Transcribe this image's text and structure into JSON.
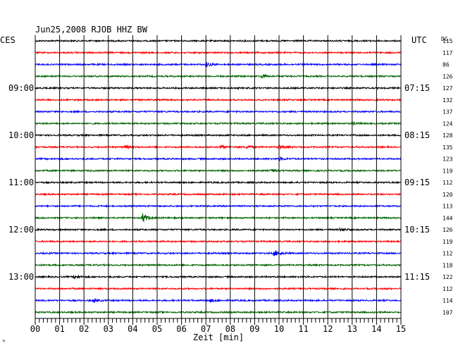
{
  "chart_data": {
    "type": "line",
    "title": "Jun25,2008   RJOB HHZ BW",
    "left_tz_label": "CES",
    "right_tz_label": "UTC",
    "dc_label": "DC",
    "xlabel": "Zeit [min]",
    "xlim": [
      0,
      15
    ],
    "x_ticks": [
      "00",
      "01",
      "02",
      "03",
      "04",
      "05",
      "06",
      "07",
      "08",
      "09",
      "10",
      "11",
      "12",
      "13",
      "14",
      "15"
    ],
    "left_time_labels": [
      "09:00",
      "10:00",
      "11:00",
      "12:00",
      "13:00"
    ],
    "left_time_label_rows": [
      4,
      8,
      12,
      16,
      20
    ],
    "right_time_labels": [
      "07:15",
      "08:15",
      "09:15",
      "10:15",
      "11:15"
    ],
    "right_time_label_rows": [
      4,
      8,
      12,
      16,
      20
    ],
    "trace_colors": [
      "#000000",
      "#ff0000",
      "#0000ff",
      "#006400"
    ],
    "dc_offsets": [
      115,
      117,
      86,
      126,
      127,
      132,
      137,
      124,
      128,
      135,
      123,
      119,
      112,
      120,
      113,
      144,
      126,
      119,
      112,
      118,
      122,
      112,
      114,
      107
    ],
    "events": [
      {
        "row": 2,
        "minute": 7.0,
        "amp": 7
      },
      {
        "row": 3,
        "minute": 9.3,
        "amp": 5
      },
      {
        "row": 7,
        "minute": 13.0,
        "amp": 4
      },
      {
        "row": 9,
        "minute": 3.7,
        "amp": 5
      },
      {
        "row": 9,
        "minute": 7.6,
        "amp": 5
      },
      {
        "row": 9,
        "minute": 8.7,
        "amp": 5
      },
      {
        "row": 9,
        "minute": 10.0,
        "amp": 7
      },
      {
        "row": 10,
        "minute": 10.0,
        "amp": 5
      },
      {
        "row": 11,
        "minute": 9.7,
        "amp": 4
      },
      {
        "row": 15,
        "minute": 4.4,
        "amp": 13
      },
      {
        "row": 16,
        "minute": 12.5,
        "amp": 4
      },
      {
        "row": 18,
        "minute": 9.8,
        "amp": 9
      },
      {
        "row": 20,
        "minute": 1.6,
        "amp": 5
      },
      {
        "row": 22,
        "minute": 2.4,
        "amp": 5
      },
      {
        "row": 22,
        "minute": 7.2,
        "amp": 4
      }
    ],
    "grid": true,
    "footnote_glyph": "ᴹ"
  }
}
